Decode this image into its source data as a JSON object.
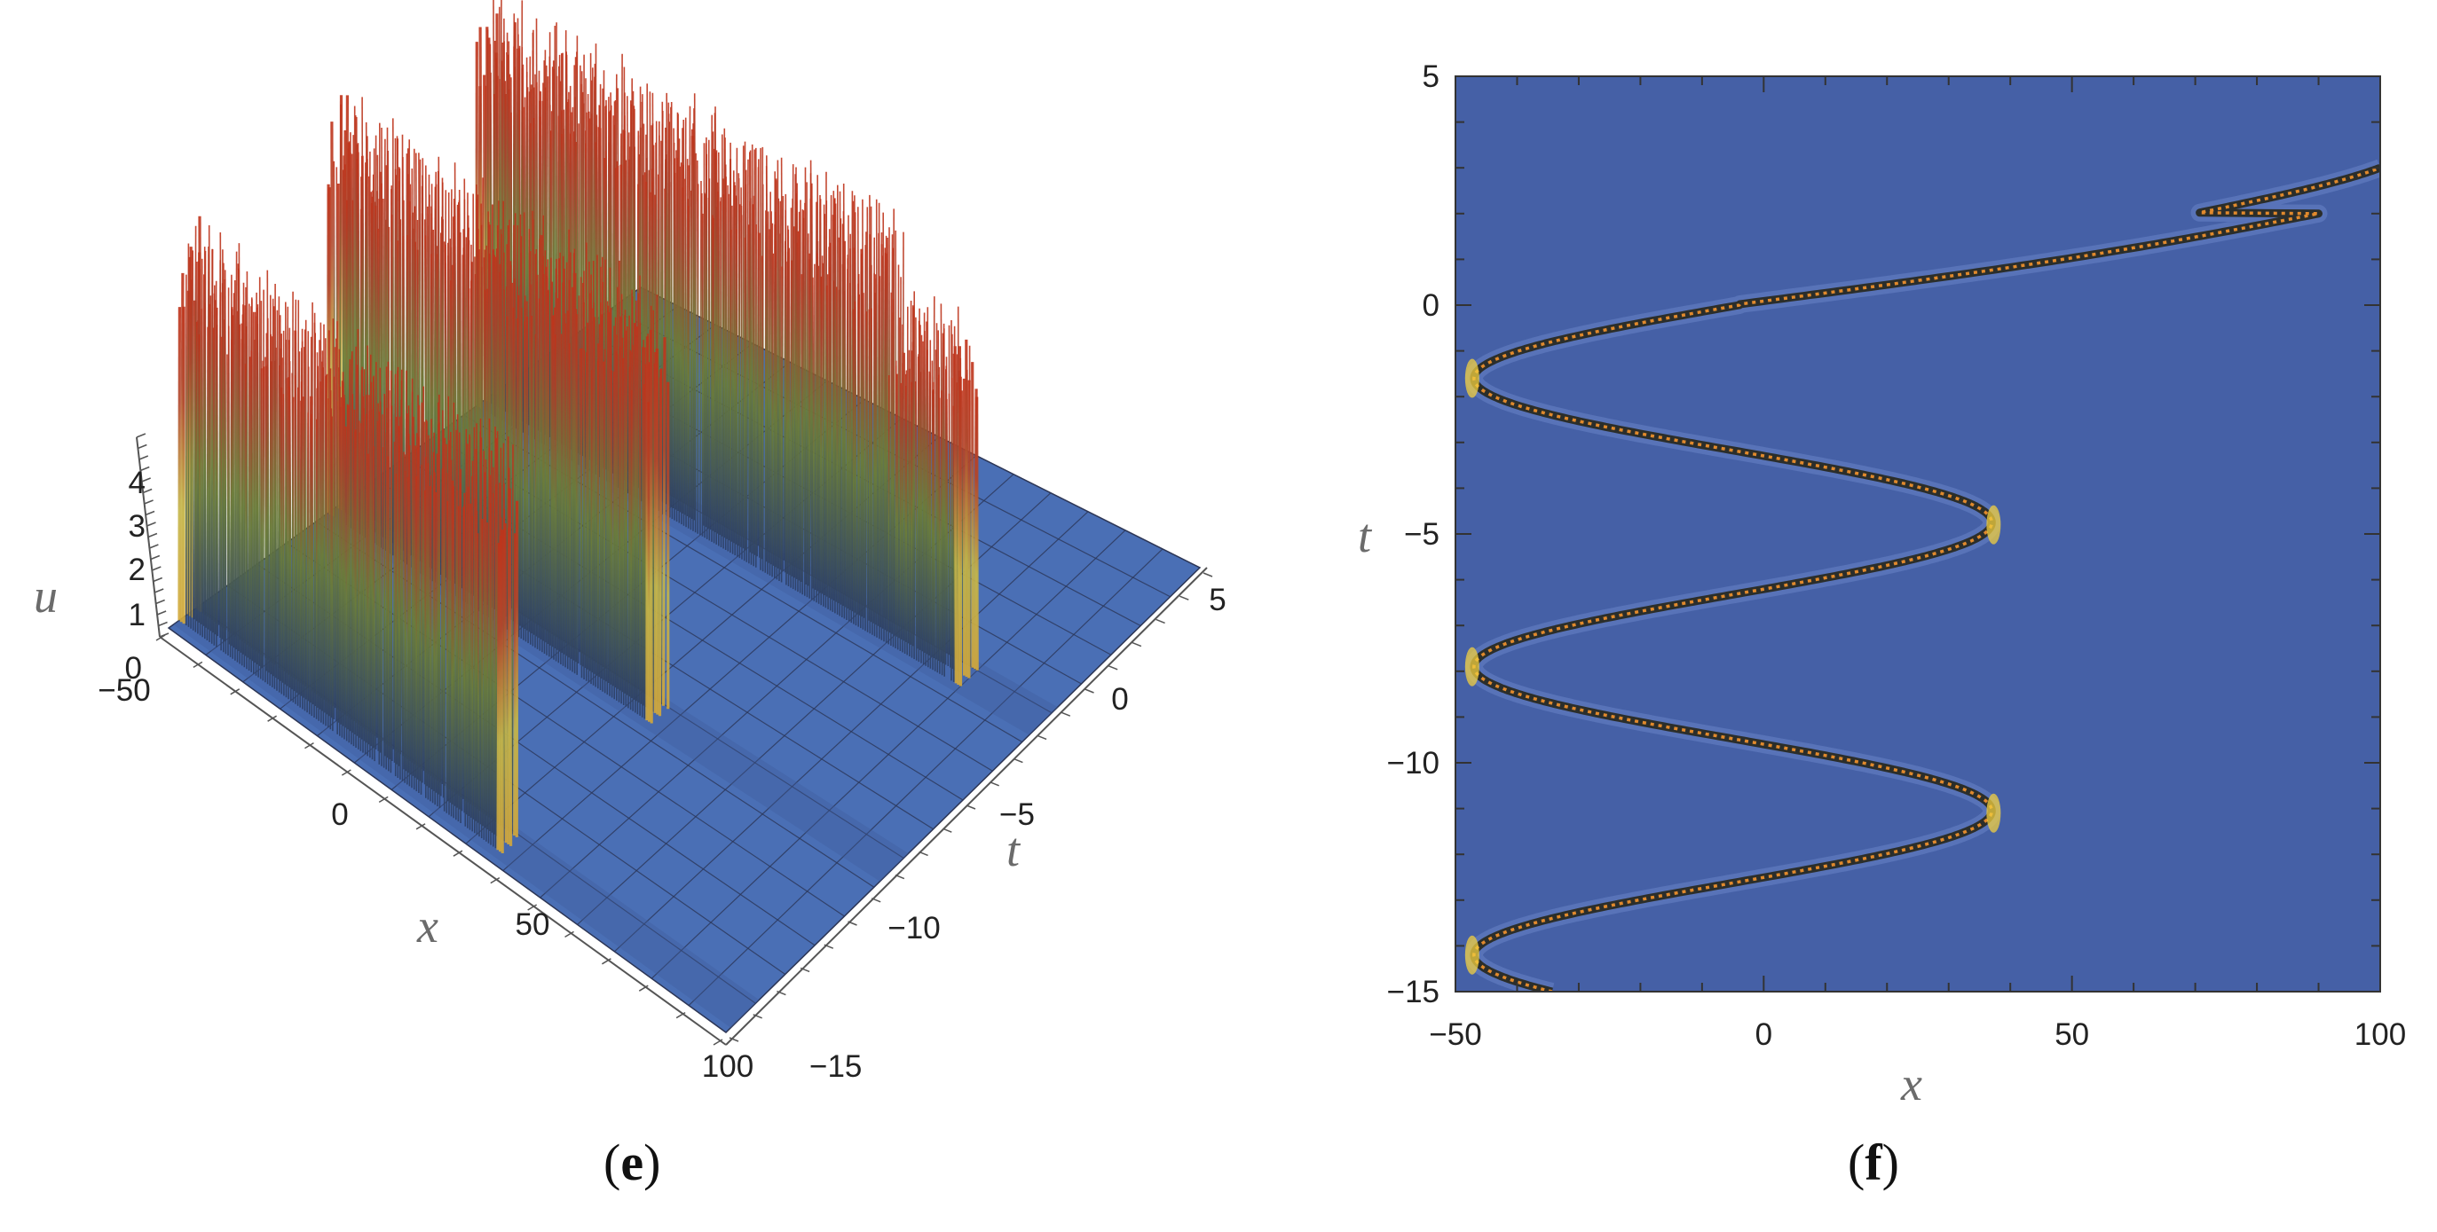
{
  "chart_data": [
    {
      "type": "surface",
      "caption_open": "(",
      "caption_letter": "e",
      "caption_close": ")",
      "x": {
        "label": "x",
        "range": [
          -50,
          100
        ],
        "ticks": [
          "−50",
          "0",
          "50",
          "100"
        ]
      },
      "t": {
        "label": "t",
        "range": [
          -15,
          5
        ],
        "ticks": [
          "5",
          "0",
          "−5",
          "−10",
          "−15"
        ]
      },
      "u": {
        "label": "u",
        "range": [
          0,
          4.5
        ],
        "ticks": [
          "4",
          "3",
          "2",
          "1",
          "0"
        ]
      },
      "peak_amplitude": 4.5,
      "crests": [
        {
          "x": -47,
          "t_from": -15,
          "t_to": -14.2
        },
        {
          "x": -47,
          "t_from": -8.6,
          "t_to": -7.3
        },
        {
          "x": -47,
          "t_from": -2.4,
          "t_to": -1.0
        },
        {
          "x": 37,
          "t_from": -11.8,
          "t_to": -10.3
        },
        {
          "x": 37,
          "t_from": -5.6,
          "t_to": -4.2
        }
      ],
      "colors": {
        "base": "#4a6fb5",
        "peak_low": "#2c3f66",
        "peak_mid": "#6b7d3a",
        "peak_high": "#c0341b"
      }
    },
    {
      "type": "heatmap",
      "caption_open": "(",
      "caption_letter": "f",
      "caption_close": ")",
      "xlabel": "x",
      "ylabel": "t",
      "xlim": [
        -50,
        100
      ],
      "ylim": [
        -15,
        5
      ],
      "x_ticks": [
        "−50",
        "0",
        "50",
        "100"
      ],
      "y_ticks": [
        "5",
        "0",
        "−5",
        "−10",
        "−15"
      ],
      "x_tick_values": [
        -50,
        0,
        50,
        100
      ],
      "y_tick_values": [
        5,
        0,
        -5,
        -10,
        -15
      ],
      "curve": {
        "description_points_t": [
          -15,
          -14.2,
          -12.6,
          -11.1,
          -9.5,
          -7.9,
          -6.3,
          -4.8,
          -3.2,
          -1.6,
          0,
          1.0,
          2.0,
          3.0
        ],
        "description_points_x": [
          -32,
          -47,
          -5,
          37,
          -5,
          -47,
          -5,
          37,
          -5,
          -47,
          5,
          42,
          65,
          100
        ]
      },
      "colors": {
        "background": "#4560a6",
        "ridge_dark": "#2b2e2b",
        "ridge_orange": "#e0892c",
        "ridge_yellow": "#f2cf3f"
      }
    }
  ]
}
